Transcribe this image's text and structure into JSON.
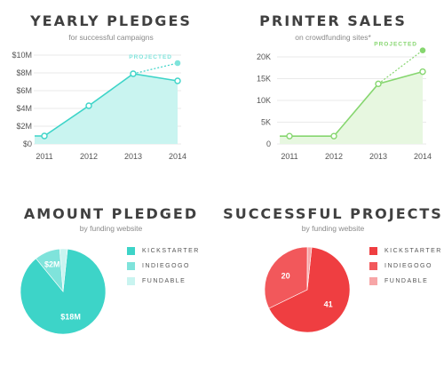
{
  "colors": {
    "teal": "#3dd4c8",
    "teal_mid": "#7fe3db",
    "teal_light": "#c9f4f0",
    "green": "#86d66f",
    "green_fill": "#e7f7e0",
    "red": "#ef3e41",
    "red_mid": "#f2585b",
    "red_light": "#f7a6a7",
    "axis_text": "#555555",
    "grid": "#eaeaea"
  },
  "chart_data": [
    {
      "type": "line",
      "title": "YEARLY PLEDGES",
      "subtitle": "for successful campaigns",
      "x": [
        "2011",
        "2012",
        "2013",
        "2014"
      ],
      "y_ticks": [
        "$0",
        "$2M",
        "$4M",
        "$6M",
        "$8M",
        "$10M"
      ],
      "ylim": [
        0,
        10
      ],
      "grid": true,
      "series": [
        {
          "values": [
            0.9,
            4.3,
            7.9,
            7.1
          ]
        }
      ],
      "projection": {
        "label": "PROJECTED",
        "from_x": "2013",
        "from_y": 7.9,
        "x": "2014",
        "y": 9.1
      }
    },
    {
      "type": "line",
      "title": "PRINTER SALES",
      "subtitle": "on crowdfunding sites*",
      "x": [
        "2011",
        "2012",
        "2013",
        "2014"
      ],
      "y_ticks": [
        "0",
        "5K",
        "10K",
        "15K",
        "20K"
      ],
      "ylim": [
        0,
        20000
      ],
      "grid": true,
      "series": [
        {
          "values": [
            1800,
            1800,
            13800,
            16600
          ]
        }
      ],
      "projection": {
        "label": "PROJECTED",
        "from_x": "2013",
        "from_y": 13800,
        "x": "2014",
        "y": 21500
      }
    },
    {
      "type": "pie",
      "title": "AMOUNT PLEDGED",
      "subtitle": "by funding website",
      "slices": [
        {
          "label": "KICKSTARTER",
          "value": 18,
          "text": "$18M"
        },
        {
          "label": "INDIEGOGO",
          "value": 2,
          "text": "$2M"
        },
        {
          "label": "FUNDABLE",
          "value": 0.6,
          "text": ""
        }
      ]
    },
    {
      "type": "pie",
      "title": "SUCCESSFUL PROJECTS",
      "subtitle": "by funding website",
      "slices": [
        {
          "label": "KICKSTARTER",
          "value": 41,
          "text": "41"
        },
        {
          "label": "INDIEGOGO",
          "value": 20,
          "text": "20"
        },
        {
          "label": "FUNDABLE",
          "value": 1,
          "text": ""
        }
      ]
    }
  ]
}
